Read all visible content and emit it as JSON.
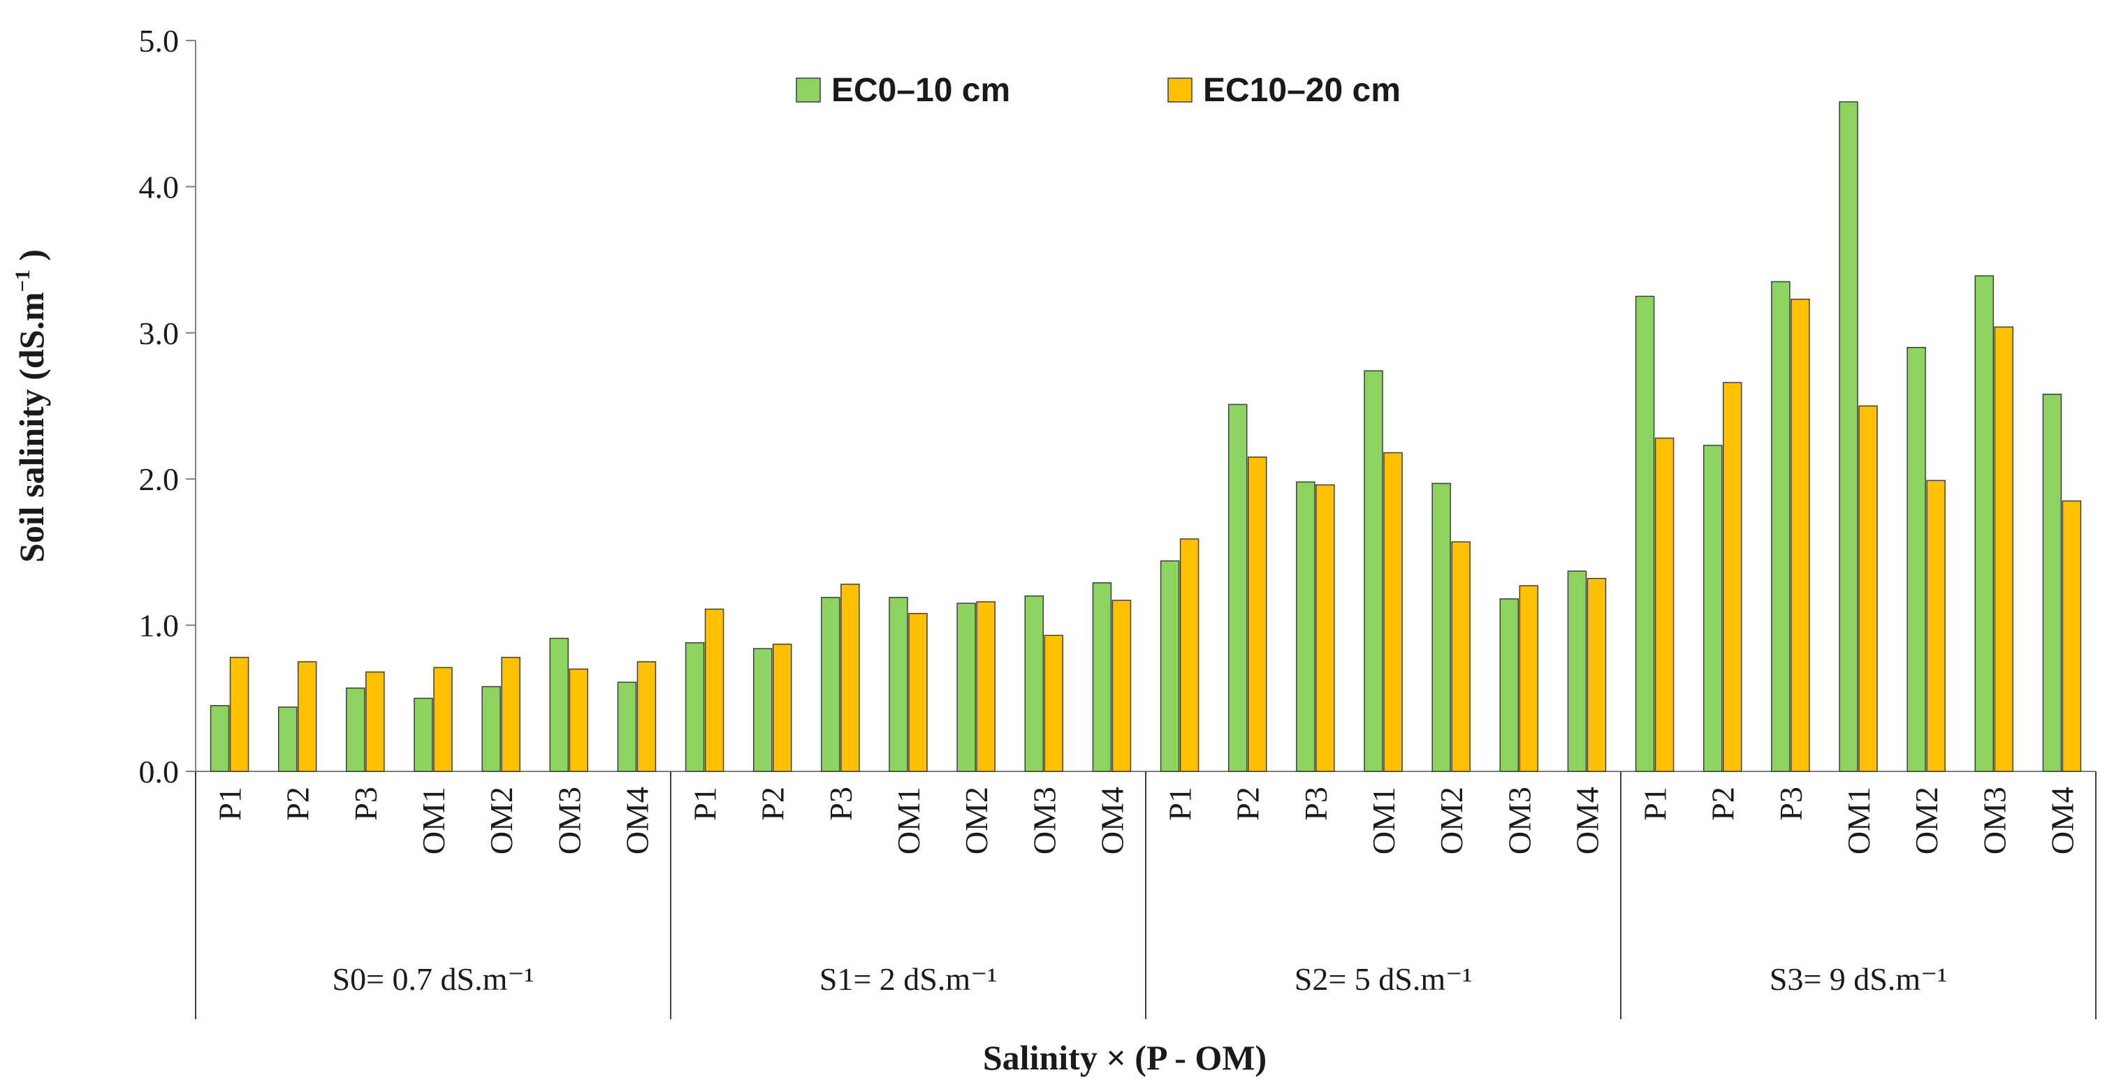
{
  "chart_data": {
    "type": "bar",
    "ylabel_main": "Soil salinity (dS.m",
    "ylabel_sup": "−1",
    "ylabel_tail": " )",
    "xlabel": "Salinity × (P - OM)",
    "ylim": [
      0,
      5
    ],
    "yticks": [
      "0.0",
      "1.0",
      "2.0",
      "3.0",
      "4.0",
      "5.0"
    ],
    "ytick_values": [
      0,
      1,
      2,
      3,
      4,
      5
    ],
    "legend": [
      "EC0–10 cm",
      "EC10–20 cm"
    ],
    "series_colors": [
      "#8dd35f",
      "#ffc000"
    ],
    "groups": [
      {
        "label": "S0= 0.7 dS.m⁻¹",
        "categories": [
          "P1",
          "P2",
          "P3",
          "OM1",
          "OM2",
          "OM3",
          "OM4"
        ]
      },
      {
        "label": "S1= 2 dS.m⁻¹",
        "categories": [
          "P1",
          "P2",
          "P3",
          "OM1",
          "OM2",
          "OM3",
          "OM4"
        ]
      },
      {
        "label": "S2= 5 dS.m⁻¹",
        "categories": [
          "P1",
          "P2",
          "P3",
          "OM1",
          "OM2",
          "OM3",
          "OM4"
        ]
      },
      {
        "label": "S3= 9 dS.m⁻¹",
        "categories": [
          "P1",
          "P2",
          "P3",
          "OM1",
          "OM2",
          "OM3",
          "OM4"
        ]
      }
    ],
    "series": [
      {
        "name": "EC0–10 cm",
        "values": [
          0.45,
          0.44,
          0.57,
          0.5,
          0.58,
          0.91,
          0.61,
          0.88,
          0.84,
          1.19,
          1.19,
          1.15,
          1.2,
          1.29,
          1.44,
          2.51,
          1.98,
          2.74,
          1.97,
          1.18,
          1.37,
          3.25,
          2.23,
          3.35,
          4.58,
          2.9,
          3.39,
          2.58
        ]
      },
      {
        "name": "EC10–20 cm",
        "values": [
          0.78,
          0.75,
          0.68,
          0.71,
          0.78,
          0.7,
          0.75,
          1.11,
          0.87,
          1.28,
          1.08,
          1.16,
          0.93,
          1.17,
          1.59,
          2.15,
          1.96,
          2.18,
          1.57,
          1.27,
          1.32,
          2.28,
          2.66,
          3.23,
          2.5,
          1.99,
          3.04,
          1.85
        ]
      }
    ]
  }
}
